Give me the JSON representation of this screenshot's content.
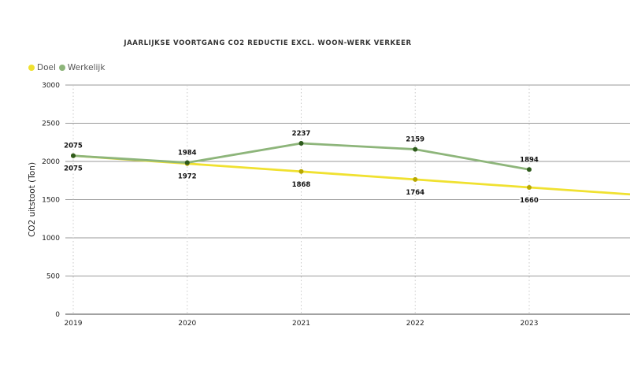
{
  "chart_data": {
    "type": "line",
    "title": "JAARLIJKSE VOORTGANG CO2 REDUCTIE EXCL. WOON-WERK VERKEER",
    "xlabel": "",
    "ylabel": "CO2 uitstoot (Ton)",
    "x": [
      "2019",
      "2020",
      "2021",
      "2022",
      "2023"
    ],
    "ylim": [
      0,
      3000
    ],
    "yticks": [
      "0",
      "500",
      "1000",
      "1500",
      "2000",
      "2500",
      "3000"
    ],
    "grid": true,
    "legend": "top-left",
    "series": [
      {
        "name": "Doel",
        "color": "#f0e130",
        "marker_color": "#b8a800",
        "values": [
          2075,
          1972,
          1868,
          1764,
          1660
        ],
        "labels": [
          "2075",
          "1972",
          "1868",
          "1764",
          "1660"
        ],
        "trend_end": {
          "x": 2023.88,
          "y": 1570
        }
      },
      {
        "name": "Werkelijk",
        "color": "#8db57a",
        "marker_color": "#2e5a1c",
        "values": [
          2075,
          1984,
          2237,
          2159,
          1894
        ],
        "labels": [
          "2075",
          "1984",
          "2237",
          "2159",
          "1894"
        ]
      }
    ]
  }
}
